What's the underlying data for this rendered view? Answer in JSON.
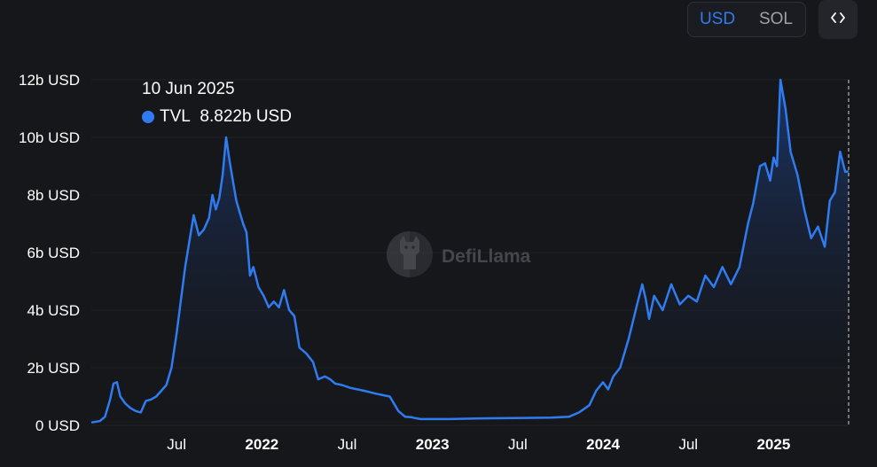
{
  "toggle": {
    "usd_label": "USD",
    "sol_label": "SOL"
  },
  "embed_icon": "code-icon",
  "tooltip": {
    "date": "10 Jun 2025",
    "series": "TVL",
    "value": "8.822b USD"
  },
  "watermark": {
    "text": "DefiLlama",
    "icon": "llama-logo"
  },
  "colors": {
    "line": "#2f7bf0",
    "background": "#16171b",
    "active": "#2f7bf0"
  },
  "chart_data": {
    "type": "area",
    "y_ticks": [
      "0 USD",
      "2b USD",
      "4b USD",
      "6b USD",
      "8b USD",
      "10b USD",
      "12b USD"
    ],
    "ylim": [
      0,
      12
    ],
    "x_ticks": [
      {
        "label": "Jul",
        "pos": 2021.5,
        "bold": false
      },
      {
        "label": "2022",
        "pos": 2022.0,
        "bold": true
      },
      {
        "label": "Jul",
        "pos": 2022.5,
        "bold": false
      },
      {
        "label": "2023",
        "pos": 2023.0,
        "bold": true
      },
      {
        "label": "Jul",
        "pos": 2023.5,
        "bold": false
      },
      {
        "label": "2024",
        "pos": 2024.0,
        "bold": true
      },
      {
        "label": "Jul",
        "pos": 2024.5,
        "bold": false
      },
      {
        "label": "2025",
        "pos": 2025.0,
        "bold": true
      }
    ],
    "x": [
      2021.0,
      2021.05,
      2021.08,
      2021.11,
      2021.13,
      2021.15,
      2021.17,
      2021.2,
      2021.23,
      2021.26,
      2021.29,
      2021.32,
      2021.35,
      2021.38,
      2021.41,
      2021.44,
      2021.47,
      2021.5,
      2021.55,
      2021.6,
      2021.63,
      2021.66,
      2021.69,
      2021.71,
      2021.73,
      2021.75,
      2021.77,
      2021.79,
      2021.81,
      2021.83,
      2021.85,
      2021.87,
      2021.89,
      2021.91,
      2021.93,
      2021.95,
      2021.98,
      2022.01,
      2022.04,
      2022.07,
      2022.1,
      2022.13,
      2022.16,
      2022.19,
      2022.22,
      2022.26,
      2022.3,
      2022.33,
      2022.37,
      2022.4,
      2022.43,
      2022.47,
      2022.52,
      2022.6,
      2022.67,
      2022.75,
      2022.8,
      2022.84,
      2022.88,
      2022.9,
      2022.93,
      2023.0,
      2023.1,
      2023.25,
      2023.4,
      2023.55,
      2023.7,
      2023.8,
      2023.86,
      2023.92,
      2023.96,
      2024.0,
      2024.03,
      2024.06,
      2024.1,
      2024.15,
      2024.2,
      2024.23,
      2024.25,
      2024.27,
      2024.3,
      2024.35,
      2024.4,
      2024.45,
      2024.5,
      2024.55,
      2024.6,
      2024.65,
      2024.7,
      2024.75,
      2024.8,
      2024.85,
      2024.88,
      2024.92,
      2024.95,
      2024.98,
      2025.0,
      2025.02,
      2025.04,
      2025.07,
      2025.1,
      2025.14,
      2025.18,
      2025.22,
      2025.26,
      2025.3,
      2025.33,
      2025.36,
      2025.39,
      2025.42,
      2025.44
    ],
    "values": [
      0.1,
      0.15,
      0.3,
      0.9,
      1.45,
      1.5,
      1.0,
      0.75,
      0.6,
      0.5,
      0.45,
      0.85,
      0.9,
      1.0,
      1.2,
      1.4,
      2.0,
      3.2,
      5.5,
      7.3,
      6.6,
      6.8,
      7.2,
      8.0,
      7.5,
      7.9,
      8.7,
      10.0,
      9.2,
      8.5,
      7.8,
      7.4,
      7.0,
      6.7,
      5.2,
      5.5,
      4.8,
      4.5,
      4.1,
      4.3,
      4.1,
      4.7,
      4.0,
      3.8,
      2.7,
      2.5,
      2.2,
      1.6,
      1.7,
      1.6,
      1.45,
      1.4,
      1.3,
      1.2,
      1.1,
      1.0,
      0.5,
      0.3,
      0.28,
      0.25,
      0.22,
      0.22,
      0.22,
      0.24,
      0.25,
      0.26,
      0.27,
      0.3,
      0.45,
      0.7,
      1.2,
      1.5,
      1.25,
      1.7,
      2.0,
      3.0,
      4.2,
      4.9,
      4.4,
      3.7,
      4.5,
      4.0,
      4.9,
      4.2,
      4.5,
      4.3,
      5.2,
      4.8,
      5.5,
      4.9,
      5.5,
      7.0,
      7.7,
      9.0,
      9.1,
      8.5,
      9.3,
      9.0,
      12.0,
      11.0,
      9.5,
      8.7,
      7.5,
      6.5,
      6.9,
      6.2,
      7.8,
      8.1,
      9.5,
      8.8,
      8.822
    ]
  }
}
